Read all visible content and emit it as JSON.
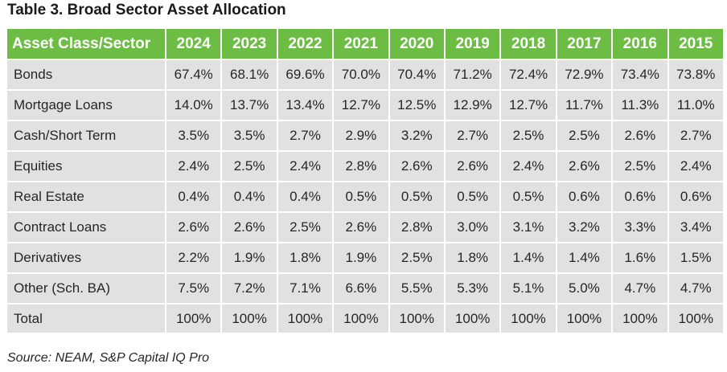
{
  "title": "Table 3. Broad Sector Asset Allocation",
  "source": "Source: NEAM, S&P Capital IQ Pro",
  "colors": {
    "header_bg": "#6dbd45",
    "header_text": "#ffffff",
    "cell_bg": "#e1e1e1",
    "cell_text": "#262626"
  },
  "chart_data": {
    "type": "table",
    "title": "Table 3. Broad Sector Asset Allocation",
    "header": [
      "Asset Class/Sector",
      "2024",
      "2023",
      "2022",
      "2021",
      "2020",
      "2019",
      "2018",
      "2017",
      "2016",
      "2015"
    ],
    "rows": [
      {
        "label": "Bonds",
        "values": [
          "67.4%",
          "68.1%",
          "69.6%",
          "70.0%",
          "70.4%",
          "71.2%",
          "72.4%",
          "72.9%",
          "73.4%",
          "73.8%"
        ]
      },
      {
        "label": "Mortgage Loans",
        "values": [
          "14.0%",
          "13.7%",
          "13.4%",
          "12.7%",
          "12.5%",
          "12.9%",
          "12.7%",
          "11.7%",
          "11.3%",
          "11.0%"
        ]
      },
      {
        "label": "Cash/Short Term",
        "values": [
          "3.5%",
          "3.5%",
          "2.7%",
          "2.9%",
          "3.2%",
          "2.7%",
          "2.5%",
          "2.5%",
          "2.6%",
          "2.7%"
        ]
      },
      {
        "label": "Equities",
        "values": [
          "2.4%",
          "2.5%",
          "2.4%",
          "2.8%",
          "2.6%",
          "2.6%",
          "2.4%",
          "2.6%",
          "2.5%",
          "2.4%"
        ]
      },
      {
        "label": "Real Estate",
        "values": [
          "0.4%",
          "0.4%",
          "0.4%",
          "0.5%",
          "0.5%",
          "0.5%",
          "0.5%",
          "0.6%",
          "0.6%",
          "0.6%"
        ]
      },
      {
        "label": "Contract Loans",
        "values": [
          "2.6%",
          "2.6%",
          "2.5%",
          "2.6%",
          "2.8%",
          "3.0%",
          "3.1%",
          "3.2%",
          "3.3%",
          "3.4%"
        ]
      },
      {
        "label": "Derivatives",
        "values": [
          "2.2%",
          "1.9%",
          "1.8%",
          "1.9%",
          "2.5%",
          "1.8%",
          "1.4%",
          "1.4%",
          "1.6%",
          "1.5%"
        ]
      },
      {
        "label": "Other (Sch. BA)",
        "values": [
          "7.5%",
          "7.2%",
          "7.1%",
          "6.6%",
          "5.5%",
          "5.3%",
          "5.1%",
          "5.0%",
          "4.7%",
          "4.7%"
        ]
      },
      {
        "label": "Total",
        "values": [
          "100%",
          "100%",
          "100%",
          "100%",
          "100%",
          "100%",
          "100%",
          "100%",
          "100%",
          "100%"
        ]
      }
    ]
  }
}
